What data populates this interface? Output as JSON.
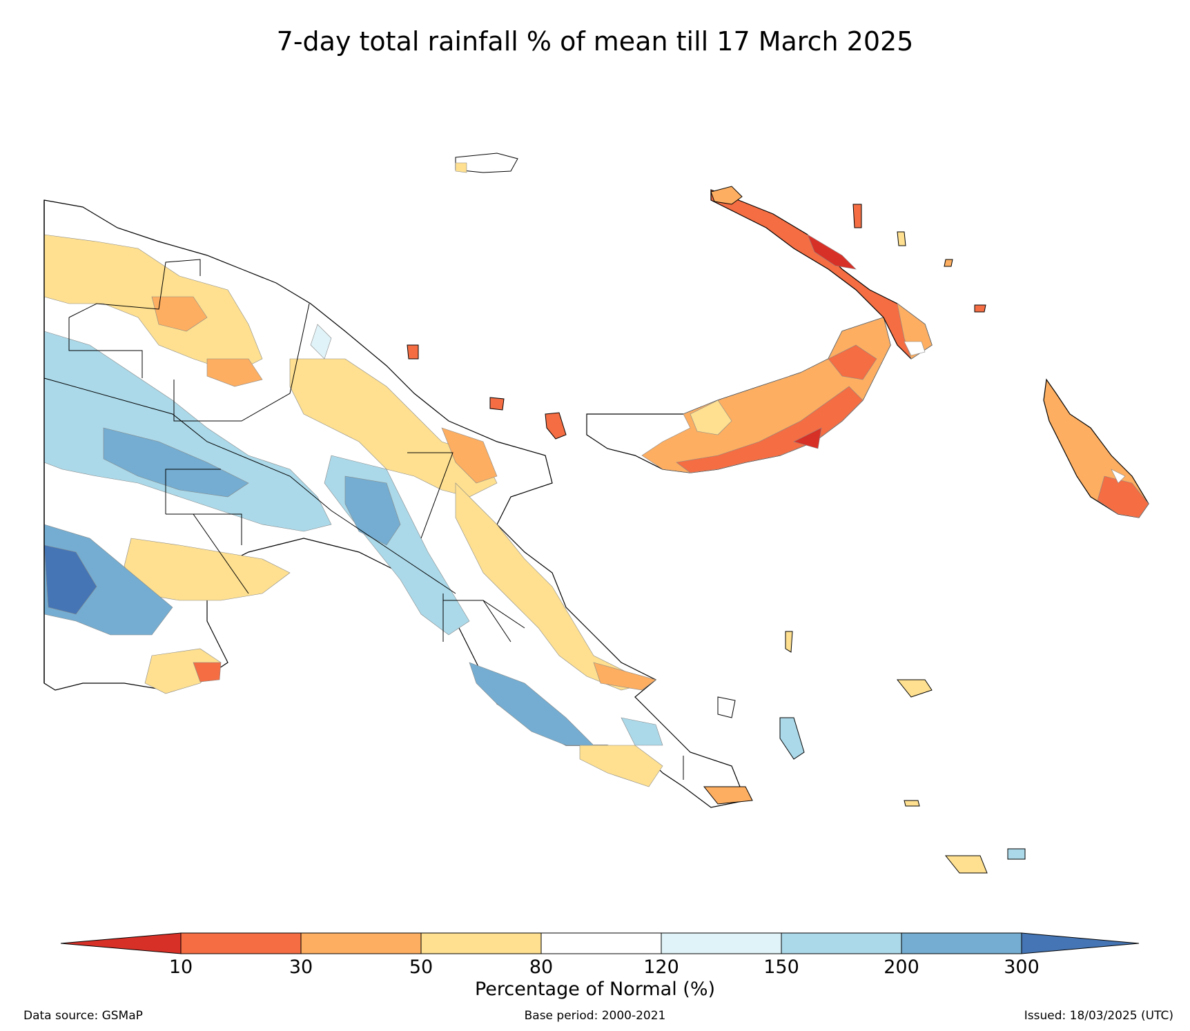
{
  "title": "7-day total rainfall % of mean till 17 March 2025",
  "colorbar": {
    "title": "Percentage of Normal (%)",
    "ticks": [
      "10",
      "30",
      "50",
      "80",
      "120",
      "150",
      "200",
      "300"
    ],
    "colors": [
      "#d73027",
      "#f46d43",
      "#fdae61",
      "#fee090",
      "#ffffff",
      "#e0f3f8",
      "#abd9e9",
      "#74add1",
      "#4575b4"
    ]
  },
  "footer": {
    "source": "Data source: GSMaP",
    "base_period": "Base period: 2000-2021",
    "issued": "Issued: 18/03/2025 (UTC)"
  }
}
